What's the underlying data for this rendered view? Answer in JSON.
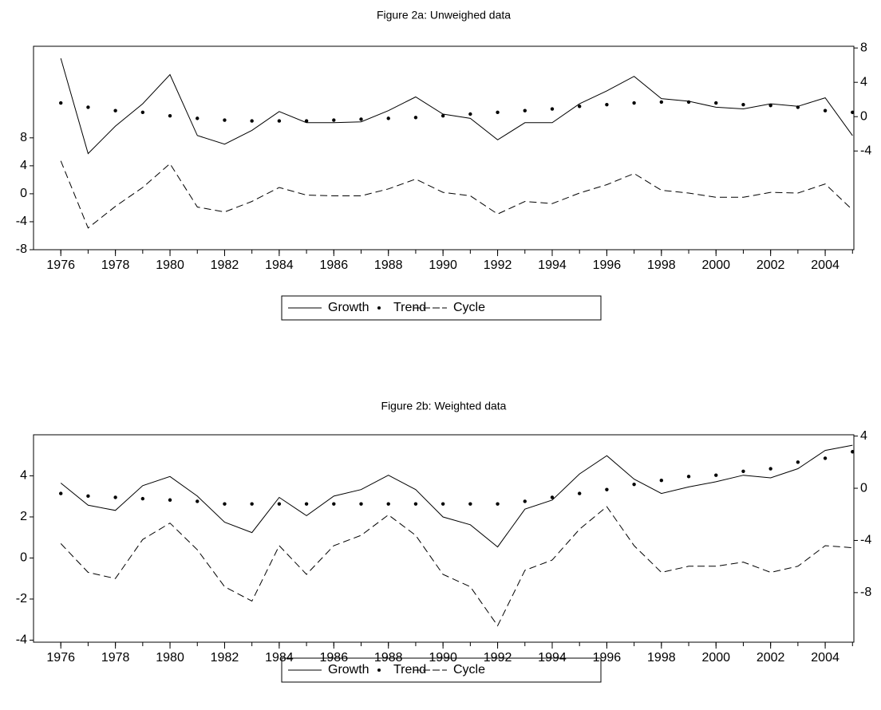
{
  "chart_data": [
    {
      "type": "line",
      "title": "Figure 2a: Unweighed data",
      "x": [
        1976,
        1977,
        1978,
        1979,
        1980,
        1981,
        1982,
        1983,
        1984,
        1985,
        1986,
        1987,
        1988,
        1989,
        1990,
        1991,
        1992,
        1993,
        1994,
        1995,
        1996,
        1997,
        1998,
        1999,
        2000,
        2001,
        2002,
        2003,
        2004,
        2005
      ],
      "xlim": [
        1975,
        2005.05
      ],
      "xticks": [
        1976,
        1978,
        1980,
        1982,
        1984,
        1986,
        1988,
        1990,
        1992,
        1994,
        1996,
        1998,
        2000,
        2002,
        2004
      ],
      "ylim": [
        -8,
        21.1
      ],
      "yticks": [
        -8,
        -4,
        0,
        4,
        8
      ],
      "y2lim": [
        -15.5,
        8.2
      ],
      "y2ticks": [
        -4,
        0,
        4,
        8
      ],
      "series": [
        {
          "name": "Growth",
          "color": "#000000",
          "line_style": "solid",
          "axis": "y2",
          "values": [
            6.8,
            -4.3,
            -1.1,
            1.5,
            4.9,
            -2.2,
            -3.2,
            -1.6,
            0.6,
            -0.7,
            -0.7,
            -0.6,
            0.7,
            2.3,
            0.3,
            -0.2,
            -2.7,
            -0.7,
            -0.7,
            1.5,
            3.0,
            4.7,
            2.1,
            1.8,
            1.1,
            0.9,
            1.5,
            1.2,
            2.2,
            -2.2
          ]
        },
        {
          "name": "Trend",
          "color": "#000000",
          "line_style": "dots",
          "axis": "y2",
          "values": [
            1.6,
            1.1,
            0.7,
            0.5,
            0.1,
            -0.2,
            -0.4,
            -0.5,
            -0.5,
            -0.5,
            -0.4,
            -0.3,
            -0.2,
            -0.1,
            0.1,
            0.3,
            0.5,
            0.7,
            0.9,
            1.2,
            1.4,
            1.6,
            1.7,
            1.7,
            1.6,
            1.4,
            1.3,
            1.1,
            0.7,
            0.5
          ]
        },
        {
          "name": "Cycle",
          "color": "#000000",
          "line_style": "dashed",
          "axis": "y",
          "values": [
            4.7,
            -4.9,
            -1.8,
            0.9,
            4.3,
            -1.9,
            -2.6,
            -1.1,
            0.9,
            -0.2,
            -0.3,
            -0.3,
            0.7,
            2.1,
            0.2,
            -0.3,
            -2.9,
            -1.1,
            -1.4,
            0.1,
            1.3,
            2.9,
            0.5,
            0.1,
            -0.5,
            -0.5,
            0.2,
            0.1,
            1.4,
            -2.3
          ]
        }
      ]
    },
    {
      "type": "line",
      "title": "Figure 2b: Weighted data",
      "x": [
        1976,
        1977,
        1978,
        1979,
        1980,
        1981,
        1982,
        1983,
        1984,
        1985,
        1986,
        1987,
        1988,
        1989,
        1990,
        1991,
        1992,
        1993,
        1994,
        1995,
        1996,
        1997,
        1998,
        1999,
        2000,
        2001,
        2002,
        2003,
        2004,
        2005
      ],
      "xlim": [
        1975,
        2005.05
      ],
      "xticks": [
        1976,
        1978,
        1980,
        1982,
        1984,
        1986,
        1988,
        1990,
        1992,
        1994,
        1996,
        1998,
        2000,
        2002,
        2004
      ],
      "ylim": [
        -4.1,
        6.0
      ],
      "yticks": [
        -4,
        -2,
        0,
        2,
        4
      ],
      "y2lim": [
        -11.8,
        4.1
      ],
      "y2ticks": [
        -8,
        -4,
        0,
        4
      ],
      "series": [
        {
          "name": "Growth",
          "color": "#000000",
          "line_style": "solid",
          "axis": "y2",
          "values": [
            0.4,
            -1.3,
            -1.7,
            0.2,
            0.9,
            -0.6,
            -2.6,
            -3.4,
            -0.7,
            -2.1,
            -0.6,
            -0.1,
            1.0,
            -0.1,
            -2.2,
            -2.8,
            -4.5,
            -1.6,
            -0.9,
            1.1,
            2.5,
            0.7,
            -0.4,
            0.1,
            0.5,
            1.0,
            0.8,
            1.5,
            2.9,
            3.3
          ]
        },
        {
          "name": "Trend",
          "color": "#000000",
          "line_style": "dots",
          "axis": "y2",
          "values": [
            -0.4,
            -0.6,
            -0.7,
            -0.8,
            -0.9,
            -1.0,
            -1.2,
            -1.2,
            -1.2,
            -1.2,
            -1.2,
            -1.2,
            -1.2,
            -1.2,
            -1.2,
            -1.2,
            -1.2,
            -1.0,
            -0.7,
            -0.4,
            -0.1,
            0.3,
            0.6,
            0.9,
            1.0,
            1.3,
            1.5,
            2.0,
            2.3,
            2.8
          ]
        },
        {
          "name": "Cycle",
          "color": "#000000",
          "line_style": "dashed",
          "axis": "y",
          "values": [
            0.7,
            -0.7,
            -1.0,
            0.9,
            1.7,
            0.4,
            -1.4,
            -2.1,
            0.6,
            -0.8,
            0.6,
            1.1,
            2.1,
            1.1,
            -0.8,
            -1.4,
            -3.3,
            -0.6,
            -0.1,
            1.4,
            2.5,
            0.6,
            -0.7,
            -0.4,
            -0.4,
            -0.2,
            -0.7,
            -0.4,
            0.6,
            0.5
          ]
        }
      ]
    }
  ]
}
